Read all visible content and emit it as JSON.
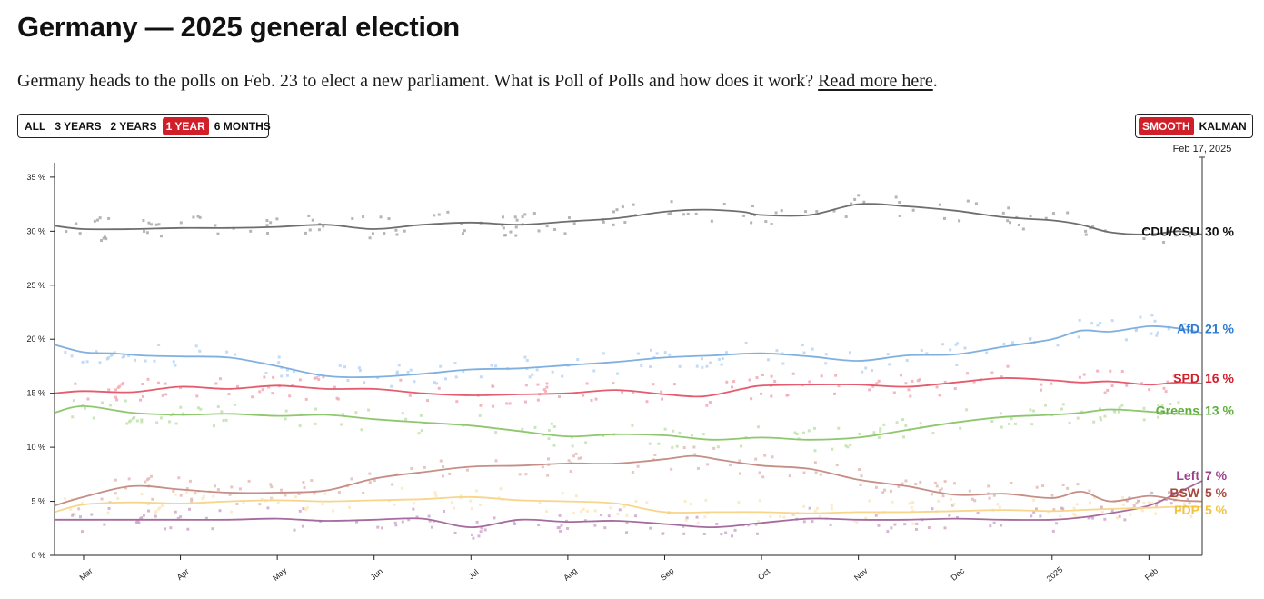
{
  "page": {
    "title": "Germany — 2025 general election",
    "intro_text": "Germany heads to the polls on Feb. 23 to elect a new parliament. What is Poll of Polls and how does it work? ",
    "intro_link": "Read more here",
    "intro_end": "."
  },
  "controls": {
    "range_buttons": [
      "ALL",
      "3 YEARS",
      "2 YEARS",
      "1 YEAR",
      "6 MONTHS"
    ],
    "range_active": "1 YEAR",
    "mode_buttons": [
      "SMOOTH",
      "KALMAN"
    ],
    "mode_active": "SMOOTH"
  },
  "chart_data": {
    "type": "line",
    "title": "Germany — 2025 general election",
    "current_date_label": "Feb 17, 2025",
    "ylim": [
      0,
      36
    ],
    "yticks": [
      0,
      5,
      10,
      15,
      20,
      25,
      30,
      35
    ],
    "ytick_labels": [
      "0 %",
      "5 %",
      "10 %",
      "15 %",
      "20 %",
      "25 %",
      "30 %",
      "35 %"
    ],
    "x_range_months": [
      -0.3,
      11.55
    ],
    "xtick_labels": [
      "Mar",
      "Apr",
      "May",
      "Jun",
      "Jul",
      "Aug",
      "Sep",
      "Oct",
      "Nov",
      "Dec",
      "2025",
      "Feb"
    ],
    "x_unit": "months since 2024-03-01",
    "series": [
      {
        "name": "CDU/CSU",
        "label": "CDU/CSU",
        "value_label": "30 %",
        "color": "#6e6e6e",
        "label_color": "#111111",
        "dot_color": "#a8a8a8",
        "x": [
          -0.3,
          0.0,
          0.5,
          1.0,
          1.5,
          2.0,
          2.5,
          3.0,
          3.5,
          4.0,
          4.5,
          5.0,
          5.5,
          6.0,
          6.4,
          6.8,
          7.0,
          7.5,
          8.0,
          8.5,
          9.0,
          9.5,
          10.0,
          10.3,
          10.6,
          11.0,
          11.3,
          11.55
        ],
        "values": [
          30.5,
          30.2,
          30.2,
          30.3,
          30.3,
          30.4,
          30.6,
          30.2,
          30.6,
          30.8,
          30.6,
          30.9,
          31.2,
          31.8,
          32.0,
          31.8,
          31.5,
          31.5,
          32.5,
          32.3,
          31.9,
          31.3,
          31.0,
          30.6,
          29.9,
          29.7,
          30.0,
          29.7
        ]
      },
      {
        "name": "AfD",
        "label": "AfD",
        "value_label": "21 %",
        "color": "#7fb0e0",
        "label_color": "#2f7bd0",
        "dot_color": "#b9d5f2",
        "x": [
          -0.3,
          0.0,
          0.3,
          0.6,
          1.0,
          1.5,
          2.0,
          2.5,
          3.0,
          3.5,
          4.0,
          4.5,
          5.0,
          5.5,
          6.0,
          6.5,
          7.0,
          7.5,
          8.0,
          8.5,
          9.0,
          9.5,
          10.0,
          10.3,
          10.6,
          11.0,
          11.3,
          11.55
        ],
        "values": [
          19.5,
          18.8,
          18.7,
          18.5,
          18.4,
          18.3,
          17.5,
          16.6,
          16.5,
          16.8,
          17.2,
          17.3,
          17.6,
          17.9,
          18.3,
          18.5,
          18.7,
          18.4,
          18.0,
          18.5,
          18.6,
          19.3,
          20.0,
          20.8,
          20.7,
          21.2,
          21.0,
          20.6
        ]
      },
      {
        "name": "SPD",
        "label": "SPD",
        "value_label": "16 %",
        "color": "#e45c6e",
        "label_color": "#d11f2a",
        "dot_color": "#f2a9b3",
        "x": [
          -0.3,
          0.0,
          0.5,
          1.0,
          1.5,
          2.0,
          2.5,
          3.0,
          3.5,
          4.0,
          4.5,
          5.0,
          5.5,
          6.0,
          6.4,
          6.8,
          7.0,
          7.5,
          8.0,
          8.5,
          9.0,
          9.5,
          10.0,
          10.3,
          10.6,
          11.0,
          11.3,
          11.55
        ],
        "values": [
          15.0,
          15.2,
          15.1,
          15.6,
          15.4,
          15.7,
          15.4,
          15.4,
          15.0,
          14.8,
          14.9,
          15.0,
          15.3,
          14.9,
          14.7,
          15.4,
          15.7,
          15.8,
          15.8,
          15.6,
          16.0,
          16.4,
          16.2,
          16.0,
          16.1,
          15.8,
          16.0,
          15.9
        ]
      },
      {
        "name": "Greens",
        "label": "Greens",
        "value_label": "13 %",
        "color": "#8fc76e",
        "label_color": "#5fae3e",
        "dot_color": "#c2e2ae",
        "x": [
          -0.3,
          0.0,
          0.5,
          1.0,
          1.5,
          2.0,
          2.5,
          3.0,
          3.5,
          4.0,
          4.5,
          5.0,
          5.5,
          6.0,
          6.5,
          7.0,
          7.5,
          8.0,
          8.5,
          9.0,
          9.5,
          10.0,
          10.3,
          10.6,
          11.0,
          11.3,
          11.55
        ],
        "values": [
          13.2,
          13.8,
          13.2,
          13.0,
          13.1,
          12.9,
          13.0,
          12.6,
          12.3,
          12.0,
          11.5,
          11.0,
          11.2,
          11.1,
          10.7,
          10.9,
          10.7,
          10.9,
          11.6,
          12.3,
          12.8,
          13.0,
          13.2,
          13.5,
          13.3,
          13.1,
          13.0
        ]
      },
      {
        "name": "Left",
        "label": "Left",
        "value_label": "7 %",
        "color": "#a66b9e",
        "label_color": "#9e3f8e",
        "dot_color": "#cfaacb",
        "x": [
          -0.3,
          0.0,
          0.5,
          1.0,
          1.5,
          2.0,
          2.5,
          3.0,
          3.5,
          4.0,
          4.5,
          5.0,
          5.5,
          6.0,
          6.5,
          7.0,
          7.5,
          8.0,
          8.5,
          9.0,
          9.5,
          10.0,
          10.3,
          10.6,
          11.0,
          11.3,
          11.55
        ],
        "values": [
          3.3,
          3.3,
          3.3,
          3.3,
          3.3,
          3.4,
          3.2,
          3.3,
          3.4,
          2.6,
          3.3,
          3.1,
          3.2,
          2.9,
          2.6,
          3.0,
          3.4,
          3.3,
          3.3,
          3.4,
          3.3,
          3.3,
          3.5,
          3.9,
          4.6,
          5.8,
          6.9
        ]
      },
      {
        "name": "BSW",
        "label": "BSW",
        "value_label": "5 %",
        "color": "#c58e86",
        "label_color": "#a8483e",
        "dot_color": "#e3bcb6",
        "x": [
          -0.3,
          0.0,
          0.5,
          1.0,
          1.5,
          2.0,
          2.5,
          3.0,
          3.5,
          4.0,
          4.5,
          5.0,
          5.5,
          6.0,
          6.3,
          6.6,
          7.0,
          7.5,
          8.0,
          8.5,
          9.0,
          9.5,
          10.0,
          10.3,
          10.6,
          11.0,
          11.3,
          11.55
        ],
        "values": [
          4.6,
          5.4,
          6.4,
          6.1,
          5.8,
          5.8,
          6.0,
          7.1,
          7.7,
          8.2,
          8.3,
          8.5,
          8.5,
          8.9,
          9.2,
          8.8,
          8.3,
          8.0,
          7.0,
          6.4,
          5.6,
          5.7,
          5.3,
          5.9,
          5.0,
          5.5,
          5.1,
          5.0
        ]
      },
      {
        "name": "FDP",
        "label": "FDP",
        "value_label": "5 %",
        "color": "#f7d58a",
        "label_color": "#f1c23a",
        "dot_color": "#fae7bd",
        "x": [
          -0.3,
          0.0,
          0.5,
          1.0,
          1.5,
          2.0,
          2.5,
          3.0,
          3.5,
          4.0,
          4.5,
          5.0,
          5.5,
          6.0,
          6.5,
          7.0,
          7.5,
          8.0,
          8.5,
          9.0,
          9.5,
          10.0,
          10.3,
          10.6,
          11.0,
          11.3,
          11.55
        ],
        "values": [
          4.0,
          4.7,
          4.9,
          4.8,
          5.0,
          5.1,
          5.0,
          5.1,
          5.2,
          5.4,
          5.1,
          5.0,
          4.8,
          4.0,
          4.0,
          4.0,
          3.9,
          4.0,
          4.0,
          4.1,
          4.2,
          4.1,
          4.2,
          4.3,
          4.4,
          4.5,
          4.5
        ]
      }
    ]
  }
}
